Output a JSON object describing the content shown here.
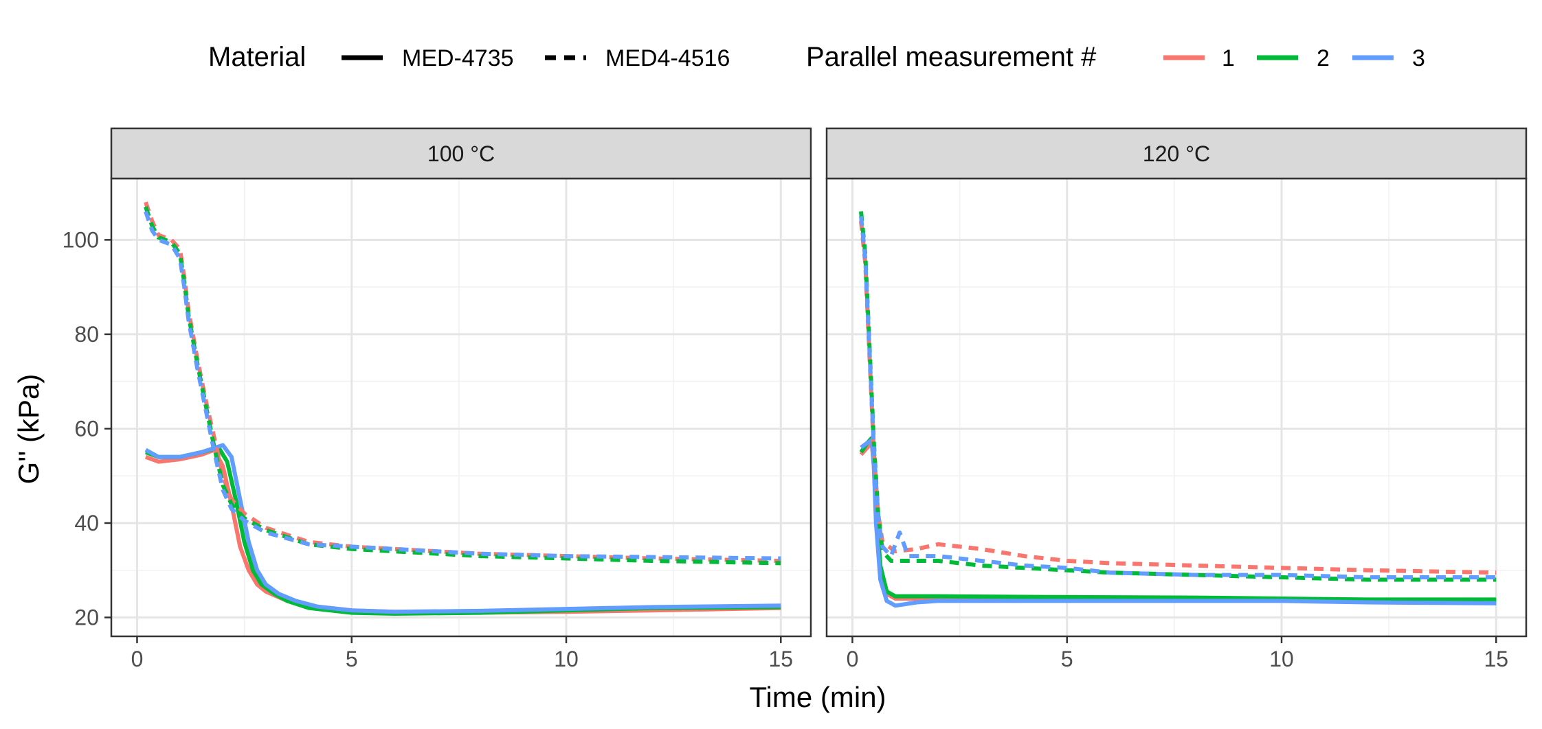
{
  "chart_data": {
    "type": "line",
    "xlabel": "Time (min)",
    "ylabel": "G'' (kPa)",
    "xlim": [
      -0.6,
      15.7
    ],
    "ylim": [
      16,
      113
    ],
    "xticks": [
      0,
      5,
      10,
      15
    ],
    "yticks": [
      20,
      40,
      60,
      80,
      100
    ],
    "grid": true,
    "legend_position": "top",
    "legends": [
      {
        "title": "Material",
        "entries": [
          {
            "label": "MED-4735",
            "style": "solid"
          },
          {
            "label": "MED4-4516",
            "style": "dashed"
          }
        ]
      },
      {
        "title": "Parallel measurement #",
        "entries": [
          {
            "label": "1",
            "color": "#F8766D"
          },
          {
            "label": "2",
            "color": "#00BA38"
          },
          {
            "label": "3",
            "color": "#619CFF"
          }
        ]
      }
    ],
    "colors": {
      "1": "#F8766D",
      "2": "#00BA38",
      "3": "#619CFF"
    },
    "panels": [
      {
        "strip": "100 °C",
        "series": [
          {
            "material": "MED-4735",
            "measurement": "1",
            "points": [
              [
                0.2,
                54
              ],
              [
                0.5,
                53
              ],
              [
                1,
                53.5
              ],
              [
                1.5,
                54.5
              ],
              [
                1.8,
                55.5
              ],
              [
                2,
                52
              ],
              [
                2.2,
                44
              ],
              [
                2.4,
                35
              ],
              [
                2.6,
                30
              ],
              [
                2.8,
                27
              ],
              [
                3,
                25.5
              ],
              [
                3.5,
                23.5
              ],
              [
                4,
                22.5
              ],
              [
                5,
                21.5
              ],
              [
                6,
                21.2
              ],
              [
                8,
                21
              ],
              [
                10,
                21.2
              ],
              [
                12,
                21.5
              ],
              [
                15,
                22
              ]
            ]
          },
          {
            "material": "MED-4735",
            "measurement": "2",
            "points": [
              [
                0.2,
                55
              ],
              [
                0.5,
                54
              ],
              [
                1,
                54
              ],
              [
                1.5,
                55
              ],
              [
                1.9,
                56
              ],
              [
                2.1,
                53
              ],
              [
                2.3,
                45
              ],
              [
                2.5,
                36
              ],
              [
                2.7,
                30
              ],
              [
                2.9,
                27
              ],
              [
                3.2,
                25
              ],
              [
                3.5,
                23.5
              ],
              [
                4,
                22
              ],
              [
                5,
                21
              ],
              [
                6,
                20.8
              ],
              [
                8,
                21
              ],
              [
                10,
                21.5
              ],
              [
                12,
                22
              ],
              [
                15,
                22.2
              ]
            ]
          },
          {
            "material": "MED-4735",
            "measurement": "3",
            "points": [
              [
                0.2,
                55.5
              ],
              [
                0.5,
                54
              ],
              [
                1,
                54
              ],
              [
                1.5,
                55
              ],
              [
                2,
                56.5
              ],
              [
                2.2,
                54
              ],
              [
                2.4,
                45
              ],
              [
                2.6,
                36
              ],
              [
                2.8,
                30
              ],
              [
                3,
                27
              ],
              [
                3.3,
                25
              ],
              [
                3.7,
                23.5
              ],
              [
                4.2,
                22.3
              ],
              [
                5,
                21.5
              ],
              [
                6,
                21.2
              ],
              [
                8,
                21.4
              ],
              [
                10,
                21.8
              ],
              [
                12,
                22.2
              ],
              [
                15,
                22.5
              ]
            ]
          },
          {
            "material": "MED4-4516",
            "measurement": "1",
            "points": [
              [
                0.2,
                108
              ],
              [
                0.35,
                104
              ],
              [
                0.5,
                101
              ],
              [
                0.8,
                100
              ],
              [
                1,
                98
              ],
              [
                1.1,
                92
              ],
              [
                1.2,
                85
              ],
              [
                1.4,
                75
              ],
              [
                1.6,
                66
              ],
              [
                1.8,
                58
              ],
              [
                2,
                50
              ],
              [
                2.2,
                45
              ],
              [
                2.5,
                42
              ],
              [
                3,
                39
              ],
              [
                4,
                36
              ],
              [
                5,
                35
              ],
              [
                6,
                34.5
              ],
              [
                8,
                33.5
              ],
              [
                10,
                33
              ],
              [
                12,
                32.5
              ],
              [
                15,
                32
              ]
            ]
          },
          {
            "material": "MED4-4516",
            "measurement": "2",
            "points": [
              [
                0.2,
                107
              ],
              [
                0.35,
                103
              ],
              [
                0.5,
                100.5
              ],
              [
                0.8,
                99.5
              ],
              [
                1,
                97
              ],
              [
                1.1,
                91
              ],
              [
                1.2,
                84
              ],
              [
                1.4,
                74
              ],
              [
                1.6,
                65
              ],
              [
                1.8,
                56
              ],
              [
                2,
                48
              ],
              [
                2.2,
                44
              ],
              [
                2.5,
                41
              ],
              [
                3,
                38.5
              ],
              [
                4,
                35.5
              ],
              [
                5,
                34.5
              ],
              [
                6,
                34
              ],
              [
                8,
                33
              ],
              [
                10,
                32.5
              ],
              [
                12,
                32
              ],
              [
                15,
                31.5
              ]
            ]
          },
          {
            "material": "MED4-4516",
            "measurement": "3",
            "points": [
              [
                0.2,
                106
              ],
              [
                0.35,
                102
              ],
              [
                0.5,
                100
              ],
              [
                0.8,
                99
              ],
              [
                1,
                96
              ],
              [
                1.1,
                90
              ],
              [
                1.2,
                83
              ],
              [
                1.4,
                73
              ],
              [
                1.6,
                64
              ],
              [
                1.8,
                55
              ],
              [
                2,
                47
              ],
              [
                2.2,
                43
              ],
              [
                2.5,
                40.5
              ],
              [
                3,
                38
              ],
              [
                4,
                35.5
              ],
              [
                5,
                35
              ],
              [
                6,
                34.5
              ],
              [
                8,
                33.5
              ],
              [
                10,
                33
              ],
              [
                12,
                32.8
              ],
              [
                15,
                32.5
              ]
            ]
          }
        ]
      },
      {
        "strip": "120 °C",
        "series": [
          {
            "material": "MED-4735",
            "measurement": "1",
            "points": [
              [
                0.2,
                54.5
              ],
              [
                0.35,
                56
              ],
              [
                0.45,
                57
              ],
              [
                0.5,
                52
              ],
              [
                0.55,
                42
              ],
              [
                0.65,
                30
              ],
              [
                0.8,
                25
              ],
              [
                1,
                24
              ],
              [
                2,
                24
              ],
              [
                5,
                24.2
              ],
              [
                8,
                24
              ],
              [
                10,
                23.8
              ],
              [
                12,
                23.6
              ],
              [
                15,
                23.5
              ]
            ]
          },
          {
            "material": "MED-4735",
            "measurement": "2",
            "points": [
              [
                0.2,
                55
              ],
              [
                0.35,
                57
              ],
              [
                0.45,
                58
              ],
              [
                0.5,
                53
              ],
              [
                0.55,
                43
              ],
              [
                0.65,
                31
              ],
              [
                0.8,
                25.5
              ],
              [
                1,
                24.5
              ],
              [
                2,
                24.5
              ],
              [
                5,
                24.3
              ],
              [
                8,
                24.2
              ],
              [
                10,
                24
              ],
              [
                12,
                23.8
              ],
              [
                15,
                23.8
              ]
            ]
          },
          {
            "material": "MED-4735",
            "measurement": "3",
            "points": [
              [
                0.2,
                56
              ],
              [
                0.35,
                57
              ],
              [
                0.45,
                57.5
              ],
              [
                0.5,
                52
              ],
              [
                0.55,
                40
              ],
              [
                0.65,
                28
              ],
              [
                0.8,
                23.5
              ],
              [
                1,
                22.5
              ],
              [
                1.5,
                23.2
              ],
              [
                2,
                23.5
              ],
              [
                5,
                23.5
              ],
              [
                8,
                23.5
              ],
              [
                10,
                23.5
              ],
              [
                12,
                23.2
              ],
              [
                15,
                23
              ]
            ]
          },
          {
            "material": "MED4-4516",
            "measurement": "1",
            "points": [
              [
                0.2,
                104
              ],
              [
                0.3,
                95
              ],
              [
                0.4,
                75
              ],
              [
                0.5,
                55
              ],
              [
                0.6,
                42
              ],
              [
                0.7,
                36
              ],
              [
                1,
                34
              ],
              [
                1.5,
                34.5
              ],
              [
                2,
                35.5
              ],
              [
                3,
                34.5
              ],
              [
                4,
                33
              ],
              [
                5,
                32
              ],
              [
                6,
                31.5
              ],
              [
                8,
                31
              ],
              [
                10,
                30.5
              ],
              [
                12,
                30
              ],
              [
                15,
                29.5
              ]
            ]
          },
          {
            "material": "MED4-4516",
            "measurement": "2",
            "points": [
              [
                0.2,
                106
              ],
              [
                0.3,
                97
              ],
              [
                0.4,
                77
              ],
              [
                0.5,
                57
              ],
              [
                0.6,
                42
              ],
              [
                0.7,
                34
              ],
              [
                0.9,
                32
              ],
              [
                1.5,
                32
              ],
              [
                2,
                32
              ],
              [
                3,
                31
              ],
              [
                4,
                30.5
              ],
              [
                5,
                30
              ],
              [
                6,
                29.5
              ],
              [
                8,
                29
              ],
              [
                10,
                28.5
              ],
              [
                12,
                28
              ],
              [
                15,
                28
              ]
            ]
          },
          {
            "material": "MED4-4516",
            "measurement": "3",
            "points": [
              [
                0.2,
                105
              ],
              [
                0.3,
                96
              ],
              [
                0.4,
                76
              ],
              [
                0.5,
                56
              ],
              [
                0.6,
                41
              ],
              [
                0.7,
                35
              ],
              [
                0.9,
                33
              ],
              [
                1.1,
                38
              ],
              [
                1.3,
                33
              ],
              [
                2,
                33
              ],
              [
                3,
                32
              ],
              [
                4,
                31
              ],
              [
                5,
                30.5
              ],
              [
                6,
                29.5
              ],
              [
                8,
                29
              ],
              [
                10,
                29
              ],
              [
                12,
                28.5
              ],
              [
                15,
                28.5
              ]
            ]
          }
        ]
      }
    ]
  }
}
